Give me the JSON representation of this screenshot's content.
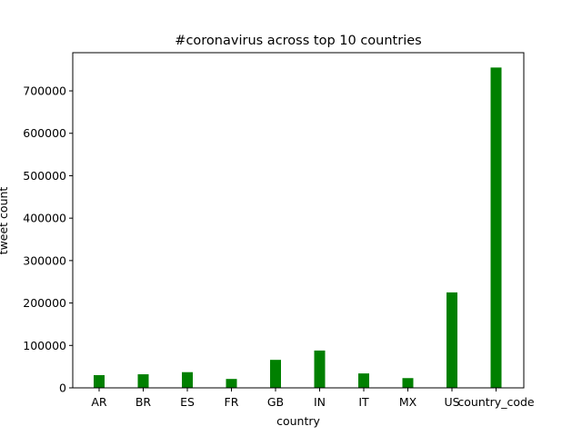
{
  "chart_data": {
    "type": "bar",
    "title": "#coronavirus across top 10 countries",
    "xlabel": "country",
    "ylabel": "tweet count",
    "categories": [
      "AR",
      "BR",
      "ES",
      "FR",
      "GB",
      "IN",
      "IT",
      "MX",
      "US",
      "country_code"
    ],
    "values": [
      30000,
      32000,
      37000,
      21000,
      66000,
      88000,
      34000,
      23000,
      225000,
      755000
    ],
    "ylim": [
      0,
      790000
    ],
    "yticks": [
      0,
      100000,
      200000,
      300000,
      400000,
      500000,
      600000,
      700000
    ],
    "bar_color": "#008000",
    "grid": false,
    "legend": "none"
  }
}
